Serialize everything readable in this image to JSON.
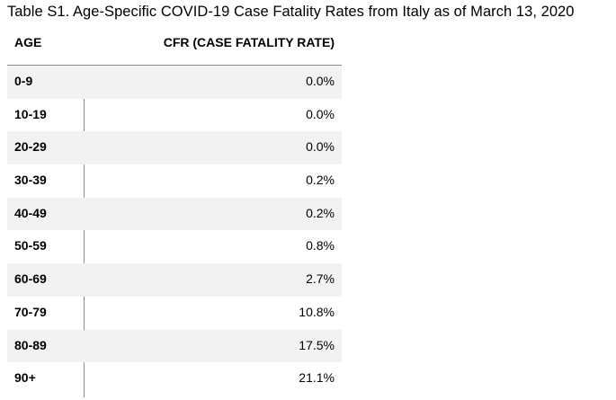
{
  "caption": "Table S1. Age-Specific COVID-19 Case Fatality Rates from Italy as of March 13, 2020",
  "table": {
    "headers": {
      "age": "AGE",
      "cfr": "CFR (CASE FATALITY RATE)"
    },
    "rows": [
      {
        "age": "0-9",
        "cfr": "0.0%"
      },
      {
        "age": "10-19",
        "cfr": "0.0%"
      },
      {
        "age": "20-29",
        "cfr": "0.0%"
      },
      {
        "age": "30-39",
        "cfr": "0.2%"
      },
      {
        "age": "40-49",
        "cfr": "0.2%"
      },
      {
        "age": "50-59",
        "cfr": "0.8%"
      },
      {
        "age": "60-69",
        "cfr": "2.7%"
      },
      {
        "age": "70-79",
        "cfr": "10.8%"
      },
      {
        "age": "80-89",
        "cfr": "17.5%"
      },
      {
        "age": "90+",
        "cfr": "21.1%"
      }
    ]
  },
  "colors": {
    "shaded_row": "#f2f2f2",
    "rule": "#8c8c8c"
  }
}
